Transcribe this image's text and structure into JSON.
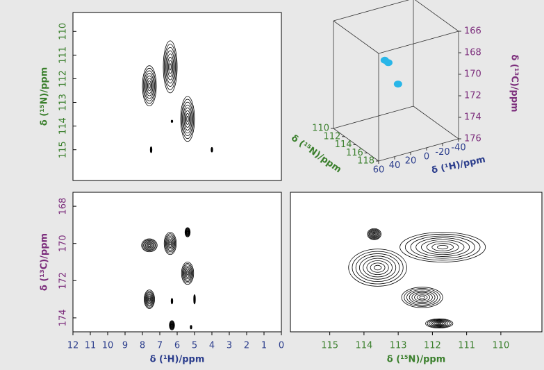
{
  "chart_data": [
    {
      "type": "contour",
      "ylabel": "δ (¹⁵N)/ppm",
      "xlim": [
        12,
        0
      ],
      "ylim": [
        109.2,
        116.3
      ],
      "yticks": [
        110,
        111,
        112,
        113,
        114,
        115
      ],
      "color": "#000000",
      "peaks": {
        "x": [
          7.6,
          6.4,
          5.4,
          6.3,
          7.5,
          4.0
        ],
        "y": [
          112.3,
          111.5,
          113.7,
          113.8,
          115.0,
          115.0
        ],
        "xw": [
          0.8,
          0.8,
          0.8,
          0.1,
          0.1,
          0.1
        ],
        "yw": [
          1.7,
          2.2,
          1.9,
          0.1,
          0.25,
          0.2
        ]
      }
    },
    {
      "type": "scatter3d",
      "xlabel": "δ (¹H)/ppm",
      "ylabel": "δ (¹⁵N)/ppm",
      "zlabel": "δ (¹³C)/ppm",
      "xlim": [
        60,
        -40
      ],
      "xticks": [
        60,
        40,
        20,
        0,
        -20,
        -40
      ],
      "ylim": [
        118,
        110
      ],
      "yticks": [
        110,
        112,
        114,
        116,
        118
      ],
      "zlim": [
        176,
        166
      ],
      "zticks": [
        166,
        168,
        170,
        172,
        174,
        176
      ],
      "x": [
        7.6,
        6.4,
        5.4
      ],
      "y": [
        112.3,
        111.5,
        113.7
      ],
      "z": [
        170.1,
        170.2,
        171.6
      ],
      "color": "#29b6e8"
    },
    {
      "type": "contour",
      "xlabel": "δ (¹H)/ppm",
      "ylabel": "δ (¹³C)/ppm",
      "xlim": [
        12,
        0
      ],
      "ylim": [
        167.25,
        174.75
      ],
      "xticks": [
        12,
        11,
        10,
        9,
        8,
        7,
        6,
        5,
        4,
        3,
        2,
        1,
        0
      ],
      "yticks": [
        168,
        170,
        172,
        174
      ],
      "color": "#000000",
      "peaks": {
        "x": [
          7.6,
          6.4,
          5.4,
          7.6,
          6.3,
          5.4,
          6.3,
          5.2,
          5.0
        ],
        "y": [
          170.1,
          170.0,
          171.6,
          173.0,
          174.4,
          169.4,
          173.1,
          174.5,
          173.0
        ],
        "xw": [
          0.9,
          0.7,
          0.7,
          0.6,
          0.3,
          0.3,
          0.1,
          0.1,
          0.1
        ],
        "yw": [
          0.7,
          1.2,
          1.2,
          1.0,
          0.5,
          0.5,
          0.3,
          0.2,
          0.5
        ]
      }
    },
    {
      "type": "contour",
      "xlabel": "δ (¹⁵N)/ppm",
      "xlim": [
        116.15,
        108.8
      ],
      "ylim": [
        167.25,
        174.75
      ],
      "xticks": [
        115,
        114,
        113,
        112,
        111,
        110
      ],
      "color": "#000000",
      "peaks": {
        "x": [
          113.6,
          111.7,
          112.3,
          113.7,
          111.8
        ],
        "y": [
          171.3,
          170.2,
          172.9,
          169.5,
          174.3
        ],
        "xw": [
          1.7,
          2.5,
          1.2,
          0.4,
          0.8
        ],
        "yw": [
          2.0,
          1.6,
          1.1,
          0.6,
          0.5
        ]
      }
    }
  ]
}
